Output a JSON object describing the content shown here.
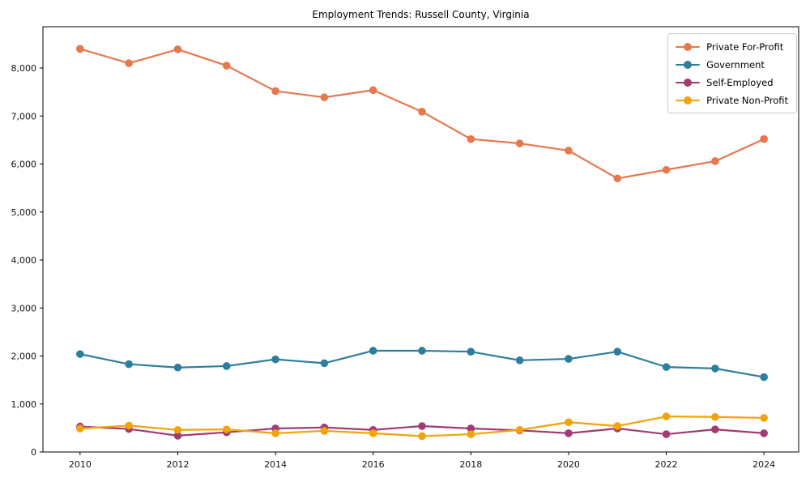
{
  "chart_data": {
    "type": "line",
    "title": "Employment Trends: Russell County, Virginia",
    "xlabel": "",
    "ylabel": "",
    "x": [
      2010,
      2011,
      2012,
      2013,
      2014,
      2015,
      2016,
      2017,
      2018,
      2019,
      2020,
      2021,
      2022,
      2023,
      2024
    ],
    "series": [
      {
        "name": "Private For-Profit",
        "color": "#E8774D",
        "values": [
          8400,
          8100,
          8390,
          8050,
          7520,
          7390,
          7540,
          7090,
          6520,
          6430,
          6280,
          5700,
          5880,
          6060,
          6520
        ]
      },
      {
        "name": "Government",
        "color": "#2D7E9E",
        "values": [
          2040,
          1830,
          1760,
          1790,
          1930,
          1850,
          2110,
          2110,
          2090,
          1910,
          1940,
          2090,
          1770,
          1740,
          1560
        ]
      },
      {
        "name": "Self-Employed",
        "color": "#A23B72",
        "values": [
          530,
          480,
          340,
          410,
          490,
          510,
          460,
          540,
          490,
          450,
          390,
          490,
          370,
          470,
          390
        ]
      },
      {
        "name": "Private Non-Profit",
        "color": "#F2A30B",
        "values": [
          490,
          550,
          460,
          470,
          390,
          440,
          390,
          330,
          370,
          460,
          620,
          540,
          740,
          730,
          710
        ]
      }
    ],
    "xticks": {
      "values": [
        2010,
        2012,
        2014,
        2016,
        2018,
        2020,
        2022,
        2024
      ],
      "labels": [
        "2010",
        "2012",
        "2014",
        "2016",
        "2018",
        "2020",
        "2022",
        "2024"
      ]
    },
    "yticks": {
      "values": [
        0,
        1000,
        2000,
        3000,
        4000,
        5000,
        6000,
        7000,
        8000
      ],
      "labels": [
        "0",
        "1,000",
        "2,000",
        "3,000",
        "4,000",
        "5,000",
        "6,000",
        "7,000",
        "8,000"
      ]
    },
    "xlim": [
      2009.24,
      2024.71
    ],
    "ylim": [
      0,
      8861
    ],
    "grid": false,
    "legend_position": "upper right"
  },
  "legend": {
    "items": [
      {
        "label": "Private For-Profit",
        "color": "#E8774D"
      },
      {
        "label": "Government",
        "color": "#2D7E9E"
      },
      {
        "label": "Self-Employed",
        "color": "#A23B72"
      },
      {
        "label": "Private Non-Profit",
        "color": "#F2A30B"
      }
    ]
  }
}
